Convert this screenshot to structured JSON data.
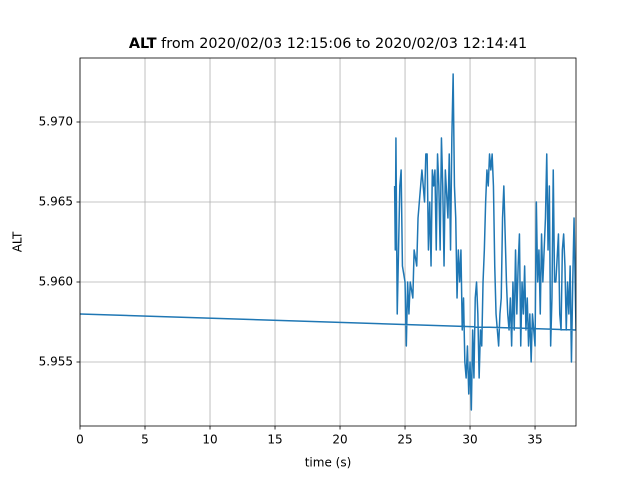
{
  "chart_data": {
    "type": "line",
    "title": {
      "variable": "ALT",
      "text": "from 2020/02/03 12:15:06 to 2020/02/03 12:14:41"
    },
    "xlabel": "time (s)",
    "ylabel": "ALT",
    "xlim": [
      0,
      38.15
    ],
    "ylim": [
      5.951,
      5.974
    ],
    "xticks": [
      0,
      5,
      10,
      15,
      20,
      25,
      30,
      35
    ],
    "yticks": [
      5.955,
      {
        "value": 5.96,
        "label": "5.960"
      },
      5.965,
      {
        "value": 5.97,
        "label": "5.970"
      }
    ],
    "grid": true,
    "series": [
      {
        "color": "#1f77b4",
        "x": [
          24.2,
          24.25,
          24.3,
          24.4,
          24.6,
          24.7,
          24.8,
          25.0,
          25.1,
          25.2,
          25.3,
          25.4,
          25.6,
          25.7,
          25.9,
          26.0,
          26.2,
          26.3,
          26.5,
          26.6,
          26.7,
          26.8,
          26.9,
          27.0,
          27.1,
          27.2,
          27.3,
          27.4,
          27.5,
          27.6,
          27.7,
          27.8,
          27.9,
          28.0,
          28.1,
          28.3,
          28.4,
          28.5,
          28.6,
          28.7,
          28.8,
          28.9,
          29.0,
          29.1,
          29.2,
          29.3,
          29.4,
          29.5,
          29.6,
          29.7,
          29.8,
          29.9,
          30.0,
          30.1,
          30.2,
          30.3,
          30.4,
          30.5,
          30.6,
          30.7,
          30.8,
          30.9,
          31.0,
          31.1,
          31.2,
          31.3,
          31.4,
          31.5,
          31.6,
          31.7,
          31.8,
          31.9,
          32.0,
          32.1,
          32.2,
          32.3,
          32.4,
          32.5,
          32.6,
          32.7,
          32.8,
          32.9,
          33.0,
          33.1,
          33.2,
          33.3,
          33.4,
          33.5,
          33.6,
          33.7,
          33.8,
          33.9,
          34.0,
          34.1,
          34.2,
          34.3,
          34.4,
          34.5,
          34.6,
          34.7,
          34.8,
          35.0,
          35.1,
          35.2,
          35.3,
          35.4,
          35.5,
          35.6,
          35.7,
          35.8,
          35.9,
          36.0,
          36.1,
          36.2,
          36.3,
          36.4,
          36.5,
          36.6,
          36.8,
          36.9,
          37.0,
          37.1,
          37.2,
          37.3,
          37.4,
          37.5,
          37.6,
          37.7,
          37.8,
          37.9,
          38.0,
          38.15,
          0
        ],
        "values": [
          5.966,
          5.962,
          5.969,
          5.958,
          5.966,
          5.967,
          5.961,
          5.96,
          5.956,
          5.96,
          5.958,
          5.96,
          5.959,
          5.962,
          5.961,
          5.964,
          5.966,
          5.967,
          5.965,
          5.968,
          5.968,
          5.962,
          5.965,
          5.961,
          5.967,
          5.966,
          5.967,
          5.962,
          5.968,
          5.966,
          5.962,
          5.969,
          5.966,
          5.961,
          5.967,
          5.964,
          5.968,
          5.962,
          5.969,
          5.973,
          5.966,
          5.964,
          5.959,
          5.962,
          5.96,
          5.962,
          5.957,
          5.959,
          5.955,
          5.954,
          5.956,
          5.953,
          5.955,
          5.952,
          5.957,
          5.954,
          5.959,
          5.96,
          5.958,
          5.954,
          5.957,
          5.956,
          5.96,
          5.962,
          5.965,
          5.967,
          5.966,
          5.968,
          5.967,
          5.968,
          5.966,
          5.961,
          5.958,
          5.957,
          5.956,
          5.958,
          5.959,
          5.964,
          5.966,
          5.963,
          5.96,
          5.958,
          5.957,
          5.959,
          5.956,
          5.96,
          5.957,
          5.962,
          5.958,
          5.961,
          5.963,
          5.956,
          5.96,
          5.958,
          5.961,
          5.957,
          5.959,
          5.956,
          5.958,
          5.955,
          5.958,
          5.956,
          5.965,
          5.96,
          5.962,
          5.958,
          5.963,
          5.96,
          5.962,
          5.964,
          5.968,
          5.962,
          5.966,
          5.956,
          5.959,
          5.967,
          5.96,
          5.96,
          5.963,
          5.958,
          5.957,
          5.962,
          5.963,
          5.961,
          5.957,
          5.96,
          5.958,
          5.961,
          5.955,
          5.96,
          5.964,
          5.957,
          5.958
        ]
      }
    ]
  }
}
